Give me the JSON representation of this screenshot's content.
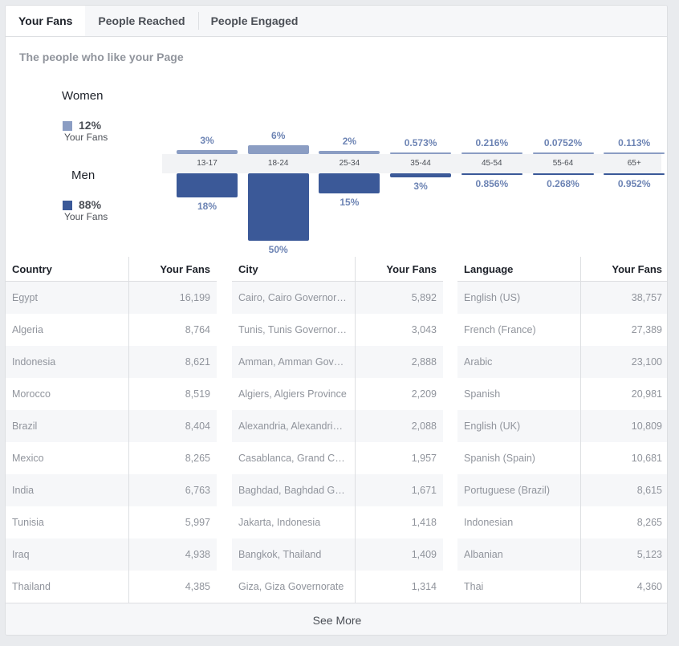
{
  "tabs": [
    "Your Fans",
    "People Reached",
    "People Engaged"
  ],
  "subtitle": "The people who like your Page",
  "legend": {
    "women": {
      "label": "Women",
      "percent": "12%",
      "sub": "Your Fans",
      "color": "#8b9dc3"
    },
    "men": {
      "label": "Men",
      "percent": "88%",
      "sub": "Your Fans",
      "color": "#3b5998"
    }
  },
  "chart_data": {
    "type": "bar",
    "categories": [
      "13-17",
      "18-24",
      "25-34",
      "35-44",
      "45-54",
      "55-64",
      "65+"
    ],
    "series": [
      {
        "name": "Women",
        "values": [
          3,
          6,
          2,
          0.573,
          0.216,
          0.0752,
          0.113
        ],
        "labels": [
          "3%",
          "6%",
          "2%",
          "0.573%",
          "0.216%",
          "0.0752%",
          "0.113%"
        ]
      },
      {
        "name": "Men",
        "values": [
          18,
          50,
          15,
          3,
          0.856,
          0.268,
          0.952
        ],
        "labels": [
          "18%",
          "50%",
          "15%",
          "3%",
          "0.856%",
          "0.268%",
          "0.952%"
        ]
      }
    ]
  },
  "tables": [
    {
      "headers": [
        "Country",
        "Your Fans"
      ],
      "rows": [
        [
          "Egypt",
          "16,199"
        ],
        [
          "Algeria",
          "8,764"
        ],
        [
          "Indonesia",
          "8,621"
        ],
        [
          "Morocco",
          "8,519"
        ],
        [
          "Brazil",
          "8,404"
        ],
        [
          "Mexico",
          "8,265"
        ],
        [
          "India",
          "6,763"
        ],
        [
          "Tunisia",
          "5,997"
        ],
        [
          "Iraq",
          "4,938"
        ],
        [
          "Thailand",
          "4,385"
        ]
      ]
    },
    {
      "headers": [
        "City",
        "Your Fans"
      ],
      "rows": [
        [
          "Cairo, Cairo Governorate",
          "5,892"
        ],
        [
          "Tunis, Tunis Governorate",
          "3,043"
        ],
        [
          "Amman, Amman Governorate",
          "2,888"
        ],
        [
          "Algiers, Algiers Province",
          "2,209"
        ],
        [
          "Alexandria, Alexandria Governorate",
          "2,088"
        ],
        [
          "Casablanca, Grand Casablanca",
          "1,957"
        ],
        [
          "Baghdad, Baghdad Governorate",
          "1,671"
        ],
        [
          "Jakarta, Indonesia",
          "1,418"
        ],
        [
          "Bangkok, Thailand",
          "1,409"
        ],
        [
          "Giza, Giza Governorate",
          "1,314"
        ]
      ]
    },
    {
      "headers": [
        "Language",
        "Your Fans"
      ],
      "rows": [
        [
          "English (US)",
          "38,757"
        ],
        [
          "French (France)",
          "27,389"
        ],
        [
          "Arabic",
          "23,100"
        ],
        [
          "Spanish",
          "20,981"
        ],
        [
          "English (UK)",
          "10,809"
        ],
        [
          "Spanish (Spain)",
          "10,681"
        ],
        [
          "Portuguese (Brazil)",
          "8,615"
        ],
        [
          "Indonesian",
          "8,265"
        ],
        [
          "Albanian",
          "5,123"
        ],
        [
          "Thai",
          "4,360"
        ]
      ]
    }
  ],
  "see_more": "See More"
}
